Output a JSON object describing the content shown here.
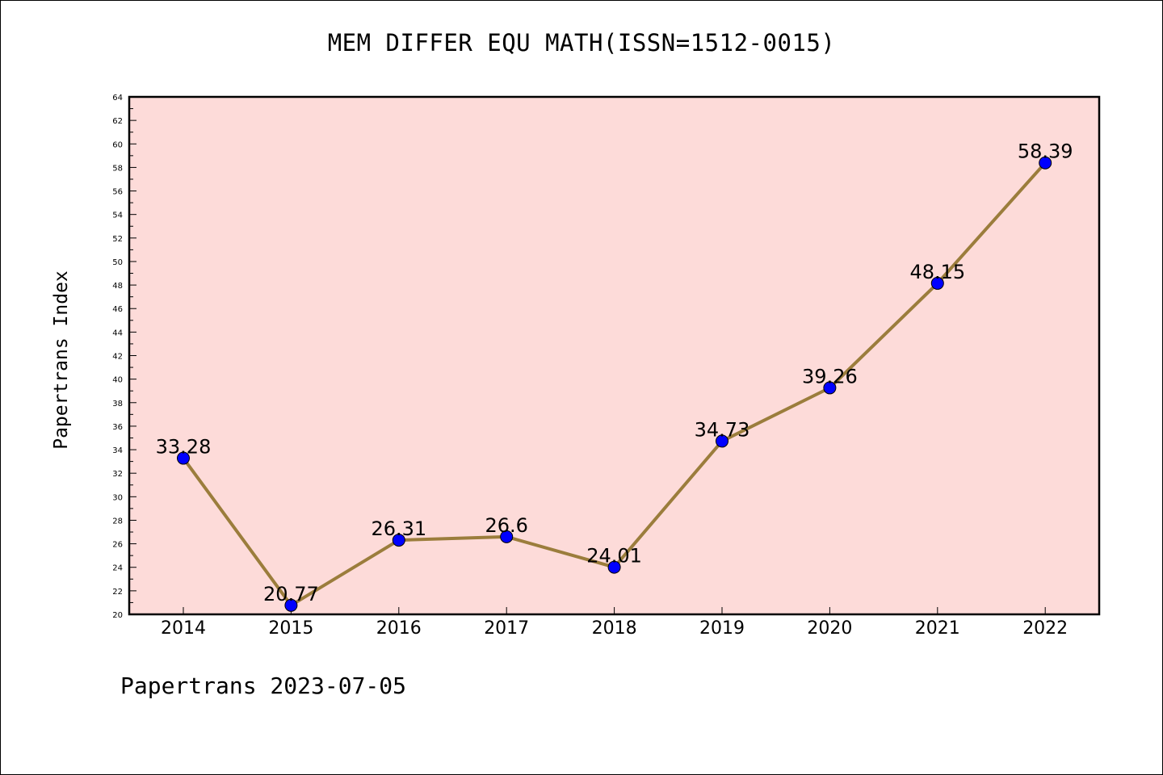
{
  "title": "MEM DIFFER EQU MATH(ISSN=1512-0015)",
  "footer": "Papertrans 2023-07-05",
  "chart_data": {
    "type": "line",
    "title": "MEM DIFFER EQU MATH(ISSN=1512-0015)",
    "xlabel": "",
    "ylabel": "Papertrans Index",
    "x": [
      "2014",
      "2015",
      "2016",
      "2017",
      "2018",
      "2019",
      "2020",
      "2021",
      "2022"
    ],
    "series": [
      {
        "values": [
          33.28,
          20.77,
          26.31,
          26.6,
          24.01,
          34.73,
          39.26,
          48.15,
          58.39
        ],
        "labels": [
          "33.28",
          "20.77",
          "26.31",
          "26.6",
          "24.01",
          "34.73",
          "39.26",
          "48.15",
          "58.39"
        ]
      }
    ],
    "ylim": [
      20,
      64
    ],
    "yticks": [
      20,
      22,
      24,
      26,
      28,
      30,
      32,
      34,
      36,
      38,
      40,
      42,
      44,
      46,
      48,
      50,
      52,
      54,
      56,
      58,
      60,
      62,
      64
    ],
    "grid": false,
    "legend": "none",
    "colors": {
      "line": "#9b7d3c",
      "marker": "#0000ff",
      "plot_background": "#fddbd9",
      "axis": "#000000"
    }
  }
}
